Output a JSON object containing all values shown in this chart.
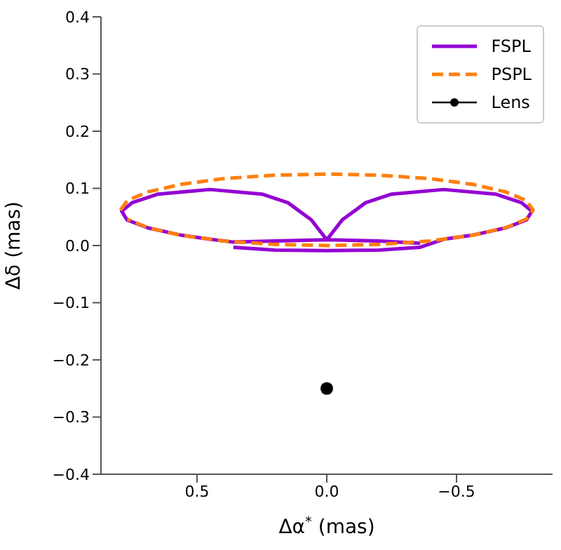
{
  "chart_data": {
    "type": "line",
    "xlabel": "Δα$^{*}$ (mas)",
    "ylabel": "Δδ (mas)",
    "xlim": [
      0.87,
      -0.87
    ],
    "xticks": [
      0.5,
      {
        "value": 0,
        "label": "0.0"
      },
      {
        "value": -0.5,
        "label": "−0.5"
      }
    ],
    "ylim": [
      -0.4,
      0.4
    ],
    "yticks": [
      {
        "value": -0.4,
        "label": "−0.4"
      },
      {
        "value": -0.3,
        "label": "−0.3"
      },
      {
        "value": -0.2,
        "label": "−0.2"
      },
      {
        "value": -0.1,
        "label": "−0.1"
      },
      {
        "value": 0,
        "label": "0.0"
      },
      0.1,
      0.2,
      0.3,
      0.4
    ],
    "grid": false,
    "legend": "top right",
    "series": [
      {
        "name": "FSPL",
        "color": "#9400d3",
        "line_style": "solid",
        "x": [
          0.36,
          0.2,
          0,
          -0.2,
          -0.36,
          -0.45,
          -0.56,
          -0.69,
          -0.77,
          -0.79,
          -0.75,
          -0.65,
          -0.45,
          -0.25,
          -0.15,
          -0.06,
          0,
          0.06,
          0.15,
          0.25,
          0.45,
          0.65,
          0.75,
          0.79,
          0.77,
          0.69,
          0.56,
          0.45,
          0.36,
          0.2,
          0,
          -0.2,
          -0.36
        ],
        "values": [
          -0.003,
          -0.008,
          -0.009,
          -0.008,
          -0.003,
          0.011,
          0.018,
          0.031,
          0.045,
          0.06,
          0.075,
          0.09,
          0.098,
          0.09,
          0.075,
          0.045,
          0.01,
          0.045,
          0.075,
          0.09,
          0.098,
          0.09,
          0.075,
          0.06,
          0.045,
          0.031,
          0.018,
          0.011,
          0.006,
          0.008,
          0.01,
          0.008,
          0.004
        ]
      },
      {
        "name": "PSPL",
        "color": "#ff7f0e",
        "line_style": "dashed",
        "x": [
          0.795,
          0.768,
          0.688,
          0.562,
          0.398,
          0.206,
          0,
          -0.206,
          -0.398,
          -0.562,
          -0.688,
          -0.768,
          -0.795,
          -0.768,
          -0.688,
          -0.562,
          -0.398,
          -0.206,
          0,
          0.206,
          0.398,
          0.562,
          0.688,
          0.768
        ],
        "values": [
          0.062,
          0.079,
          0.094,
          0.107,
          0.117,
          0.123,
          0.125,
          0.123,
          0.117,
          0.107,
          0.094,
          0.079,
          0.062,
          0.046,
          0.031,
          0.018,
          0.008,
          0.002,
          0,
          0.002,
          0.008,
          0.018,
          0.031,
          0.046
        ]
      },
      {
        "name": "Lens",
        "type": "scatter",
        "color": "#000000",
        "marker": "circle",
        "x": [
          0
        ],
        "values": [
          -0.25
        ]
      }
    ]
  }
}
